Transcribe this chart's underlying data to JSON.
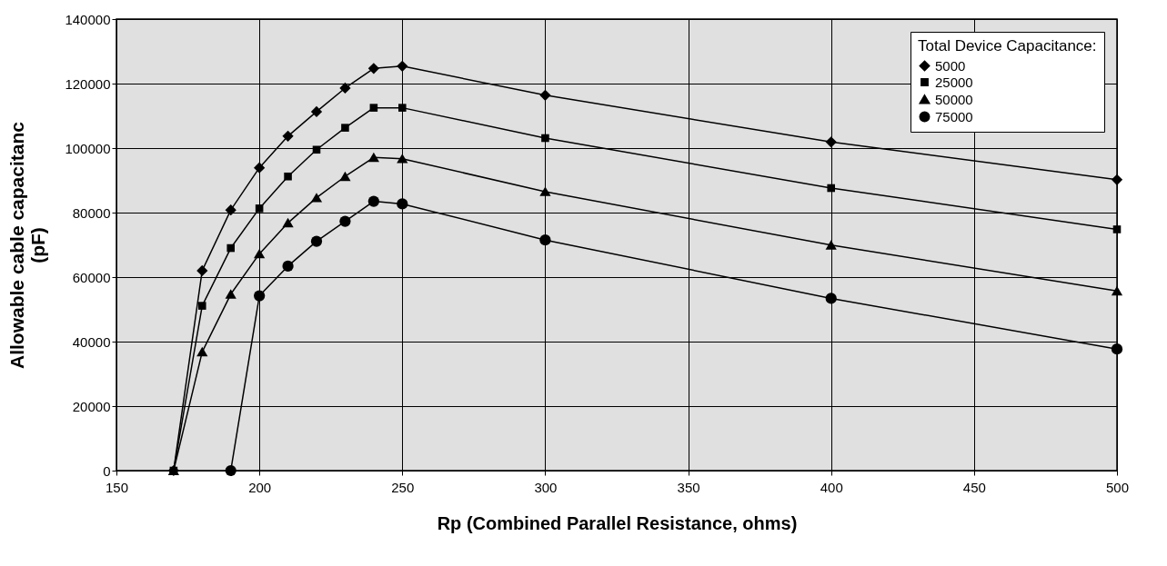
{
  "chart_data": {
    "type": "line",
    "xlabel": "Rp (Combined Parallel Resistance, ohms)",
    "ylabel": "Allowable cable capacitanc\n(pF)",
    "legend_title": "Total Device Capacitance:",
    "x": [
      170,
      180,
      190,
      200,
      210,
      220,
      230,
      240,
      250,
      300,
      400,
      500
    ],
    "series": [
      {
        "name": "5000",
        "color": "#000000",
        "marker": "diamond",
        "values": [
          0,
          62000,
          80800,
          93900,
          103700,
          111300,
          118600,
          124700,
          125400,
          116400,
          101900,
          90200
        ]
      },
      {
        "name": "25000",
        "color": "#000000",
        "marker": "square",
        "values": [
          0,
          51100,
          69000,
          81300,
          91200,
          99500,
          106300,
          112500,
          112500,
          103100,
          87600,
          74800
        ]
      },
      {
        "name": "50000",
        "color": "#000000",
        "marker": "triangle",
        "values": [
          0,
          36800,
          54700,
          67200,
          76800,
          84600,
          91200,
          97100,
          96700,
          86500,
          69900,
          55700
        ]
      },
      {
        "name": "75000",
        "color": "#000000",
        "marker": "circle",
        "values": [
          null,
          null,
          0,
          54200,
          63400,
          71100,
          77300,
          83500,
          82700,
          71500,
          53400,
          37700
        ]
      }
    ],
    "xlim": [
      150,
      500
    ],
    "xticks": [
      150,
      200,
      250,
      300,
      350,
      400,
      450,
      500
    ],
    "ylim": [
      0,
      140000
    ],
    "yticks": [
      0,
      20000,
      40000,
      60000,
      80000,
      100000,
      120000,
      140000
    ],
    "grid": true,
    "legend": "top right",
    "line_style": "solid"
  }
}
